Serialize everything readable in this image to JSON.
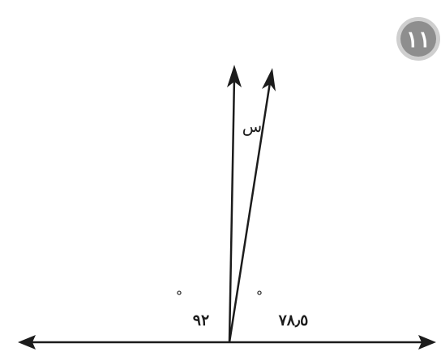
{
  "problem_badge": {
    "number": "١١",
    "fill": "#8e8e8e",
    "ring": "#cfcfcf"
  },
  "angles": {
    "left_value": "٩٢",
    "left_degree": "°",
    "right_value": "٧٨٫٥",
    "right_degree": "°"
  },
  "variable": "س",
  "colors": {
    "ink": "#1c1c1c"
  }
}
